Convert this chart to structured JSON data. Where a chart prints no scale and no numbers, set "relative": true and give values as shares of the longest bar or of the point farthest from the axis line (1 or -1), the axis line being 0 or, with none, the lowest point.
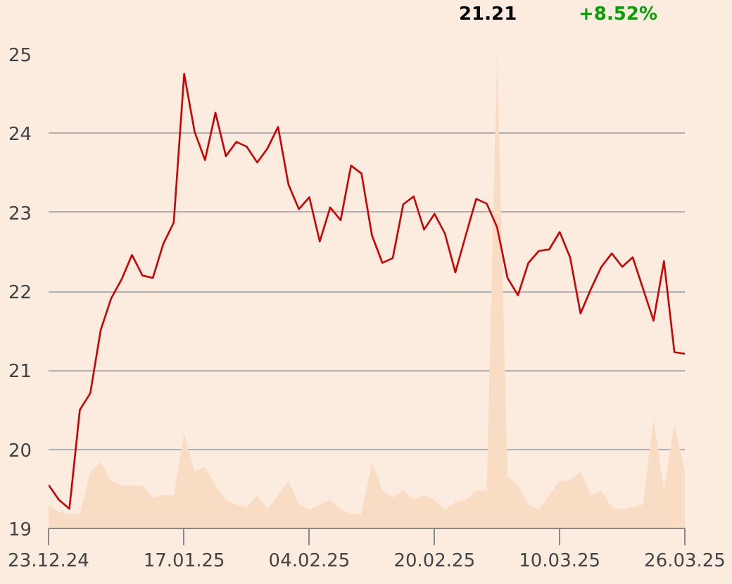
{
  "chart_data": [
    {
      "type": "line",
      "annotations": [
        "21.21",
        "+8.52%"
      ],
      "categories": [
        "23.12.24",
        null,
        null,
        null,
        null,
        null,
        null,
        null,
        null,
        null,
        null,
        null,
        null,
        "17.01.25",
        null,
        null,
        null,
        null,
        null,
        null,
        null,
        null,
        null,
        null,
        null,
        "04.02.25",
        null,
        null,
        null,
        null,
        null,
        null,
        null,
        null,
        null,
        null,
        null,
        "20.02.25",
        null,
        null,
        null,
        null,
        null,
        null,
        null,
        null,
        null,
        null,
        null,
        "10.03.25",
        null,
        null,
        null,
        null,
        null,
        null,
        null,
        null,
        null,
        null,
        null,
        "26.03.25"
      ],
      "series": [
        {
          "color": "#cc0000",
          "values": [
            19.55,
            19.36,
            19.25,
            20.5,
            20.71,
            21.51,
            21.91,
            22.15,
            22.46,
            22.2,
            22.17,
            22.6,
            22.87,
            24.75,
            24.02,
            23.66,
            24.26,
            23.71,
            23.89,
            23.83,
            23.63,
            23.81,
            24.08,
            23.35,
            23.04,
            23.19,
            22.63,
            23.06,
            22.9,
            23.59,
            23.49,
            22.71,
            22.36,
            22.42,
            23.1,
            23.2,
            22.78,
            22.98,
            22.73,
            22.24,
            22.71,
            23.17,
            23.11,
            22.81,
            22.17,
            21.95,
            22.36,
            22.51,
            22.53,
            22.75,
            22.43,
            21.72,
            22.03,
            22.31,
            22.48,
            22.31,
            22.43,
            22.03,
            21.63,
            22.38,
            21.23,
            21.21
          ]
        }
      ],
      "ylim": [
        19,
        25
      ],
      "yticks": [
        19,
        20,
        21,
        22,
        23,
        24,
        25
      ],
      "grid": "y",
      "line_style": "solid",
      "marker": "none"
    },
    {
      "type": "area",
      "relative": true,
      "categories": [
        null,
        null,
        null,
        null,
        null,
        null,
        null,
        null,
        null,
        null,
        null,
        null,
        null,
        null,
        null,
        null,
        null,
        null,
        null,
        null,
        null,
        null,
        null,
        null,
        null,
        null,
        null,
        null,
        null,
        null,
        null,
        null,
        null,
        null,
        null,
        null,
        null,
        null,
        null,
        null,
        null,
        null,
        null,
        null,
        null,
        null,
        null,
        null,
        null,
        null,
        null,
        null,
        null,
        null,
        null,
        null,
        null,
        null,
        null,
        null,
        null,
        null
      ],
      "series": [
        {
          "color": "#f8dcc4",
          "values": [
            0.05,
            0.035,
            0.03,
            0.03,
            0.12,
            0.14,
            0.1,
            0.09,
            0.09,
            0.09,
            0.065,
            0.07,
            0.07,
            0.2,
            0.12,
            0.13,
            0.09,
            0.06,
            0.05,
            0.045,
            0.07,
            0.04,
            0.07,
            0.1,
            0.05,
            0.04,
            0.05,
            0.06,
            0.04,
            0.03,
            0.03,
            0.14,
            0.08,
            0.065,
            0.08,
            0.06,
            0.07,
            0.06,
            0.04,
            0.055,
            0.06,
            0.08,
            0.08,
            1.0,
            0.11,
            0.09,
            0.05,
            0.04,
            0.07,
            0.1,
            0.1,
            0.12,
            0.07,
            0.08,
            0.045,
            0.04,
            0.045,
            0.05,
            0.23,
            0.08,
            0.22,
            0.12
          ]
        }
      ]
    }
  ]
}
